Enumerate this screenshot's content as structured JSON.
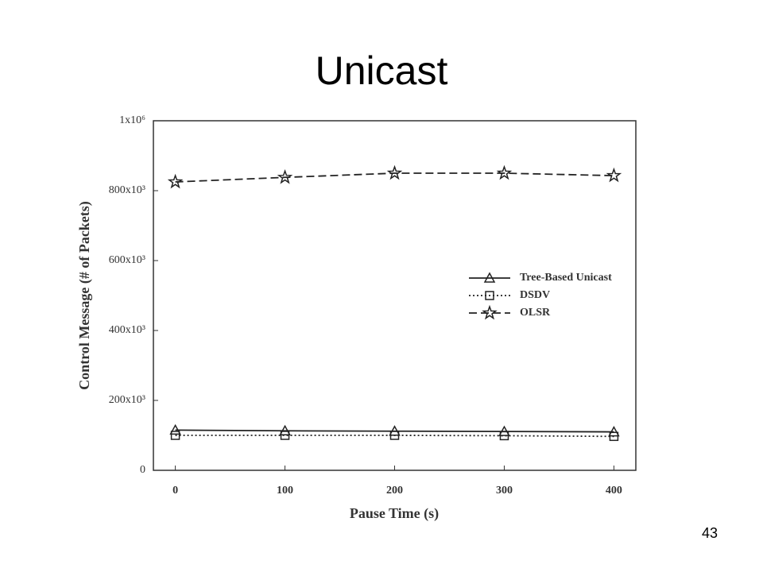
{
  "slide": {
    "title": "Unicast",
    "page_number": "43"
  },
  "chart_data": {
    "type": "line",
    "xlabel": "Pause Time (s)",
    "ylabel": "Control Message (# of Packets)",
    "x": [
      0,
      100,
      200,
      300,
      400
    ],
    "xlim": [
      -20,
      420
    ],
    "xticks": [
      0,
      100,
      200,
      300,
      400
    ],
    "ylim": [
      0,
      1000000
    ],
    "yticks": [
      0,
      {
        "value": 200000,
        "label": "200x10³"
      },
      {
        "value": 400000,
        "label": "400x10³"
      },
      {
        "value": 600000,
        "label": "600x10³"
      },
      {
        "value": 800000,
        "label": "800x10³"
      },
      {
        "value": 1000000,
        "label": "1x10⁶"
      }
    ],
    "legend": "center right",
    "series": [
      {
        "name": "Tree-Based Unicast",
        "color": "#222222",
        "dash": "solid",
        "marker": "triangle",
        "values": [
          115000,
          113000,
          112000,
          111000,
          110000
        ]
      },
      {
        "name": "DSDV",
        "color": "#222222",
        "dash": "dotted",
        "marker": "square",
        "values": [
          100000,
          100000,
          100000,
          99000,
          97000
        ]
      },
      {
        "name": "OLSR",
        "color": "#222222",
        "dash": "dashed",
        "marker": "star",
        "values": [
          825000,
          838000,
          850000,
          850000,
          843000
        ]
      }
    ]
  }
}
